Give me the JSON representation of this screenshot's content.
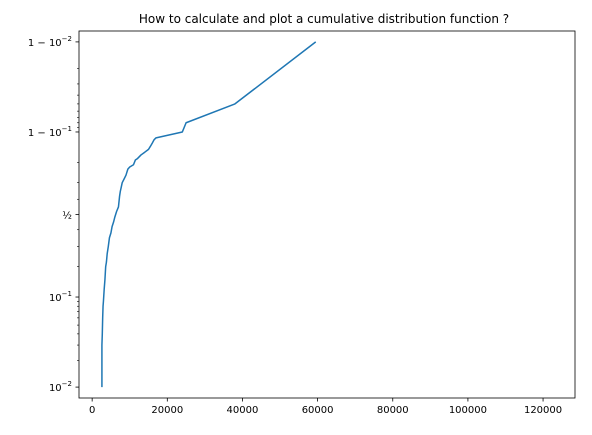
{
  "chart_data": {
    "type": "line",
    "title": "How to calculate and plot a cumulative distribution function ?",
    "xlabel": "",
    "ylabel": "",
    "x_scale": "linear",
    "y_scale": "logit",
    "xlim": [
      -3500,
      128500
    ],
    "ylim": [
      0.0075,
      0.9925
    ],
    "grid": false,
    "x_ticks": [
      {
        "value": 0,
        "label": "0"
      },
      {
        "value": 20000,
        "label": "20000"
      },
      {
        "value": 40000,
        "label": "40000"
      },
      {
        "value": 60000,
        "label": "60000"
      },
      {
        "value": 80000,
        "label": "80000"
      },
      {
        "value": 100000,
        "label": "100000"
      },
      {
        "value": 120000,
        "label": "120000"
      }
    ],
    "y_ticks": [
      {
        "value": 0.01,
        "base": "10",
        "exp": "−2",
        "prefix": ""
      },
      {
        "value": 0.1,
        "base": "10",
        "exp": "−1",
        "prefix": ""
      },
      {
        "value": 0.5,
        "base": "",
        "exp": "",
        "prefix": "½"
      },
      {
        "value": 0.9,
        "base": "10",
        "exp": "−1",
        "prefix": "1 − "
      },
      {
        "value": 0.99,
        "base": "10",
        "exp": "−2",
        "prefix": "1 − "
      }
    ],
    "series": [
      {
        "color": "#1f77b4",
        "x": [
          2600,
          2600,
          2700,
          2800,
          2900,
          3000,
          3200,
          3400,
          3600,
          3800,
          4000,
          4300,
          4600,
          5000,
          5300,
          5700,
          6000,
          6500,
          7000,
          7300,
          7500,
          7700,
          8000,
          8500,
          9000,
          9500,
          10000,
          11000,
          11500,
          12000,
          13000,
          14000,
          15000,
          15500,
          16000,
          16500,
          17000,
          24000,
          25000,
          38000,
          59500
        ],
        "y": [
          0.01,
          0.03,
          0.04,
          0.06,
          0.08,
          0.09,
          0.12,
          0.15,
          0.2,
          0.22,
          0.26,
          0.3,
          0.35,
          0.38,
          0.42,
          0.45,
          0.48,
          0.52,
          0.55,
          0.62,
          0.65,
          0.67,
          0.7,
          0.72,
          0.74,
          0.77,
          0.78,
          0.79,
          0.81,
          0.815,
          0.83,
          0.84,
          0.85,
          0.86,
          0.87,
          0.88,
          0.885,
          0.9,
          0.92,
          0.95,
          0.99
        ]
      }
    ]
  }
}
